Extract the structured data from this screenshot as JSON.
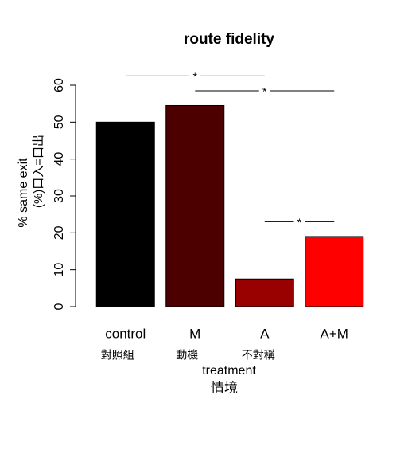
{
  "chart_data": {
    "type": "bar",
    "title": "route fidelity",
    "categories": [
      "control",
      "M",
      "A",
      "A+M"
    ],
    "sublabels": [
      "對照組",
      "動機",
      "不對稱",
      null
    ],
    "values": [
      50,
      54.5,
      7.5,
      19
    ],
    "colors": [
      "#000000",
      "#4d0000",
      "#990000",
      "#ff0000"
    ],
    "ylim": [
      0,
      60
    ],
    "yticks": [
      0,
      10,
      20,
      30,
      40,
      50,
      60
    ],
    "ylabel": "% same exit",
    "ylabel2": "(%)口入=口出",
    "xlabel": "treatment",
    "xlabel2": "情境",
    "annotations": [
      {
        "label": "*",
        "from": 0,
        "to": 2,
        "y": 62.5
      },
      {
        "label": "*",
        "from": 1,
        "to": 3,
        "y": 58.5
      },
      {
        "label": "*",
        "from": 2,
        "to": 3,
        "y": 23
      }
    ]
  }
}
